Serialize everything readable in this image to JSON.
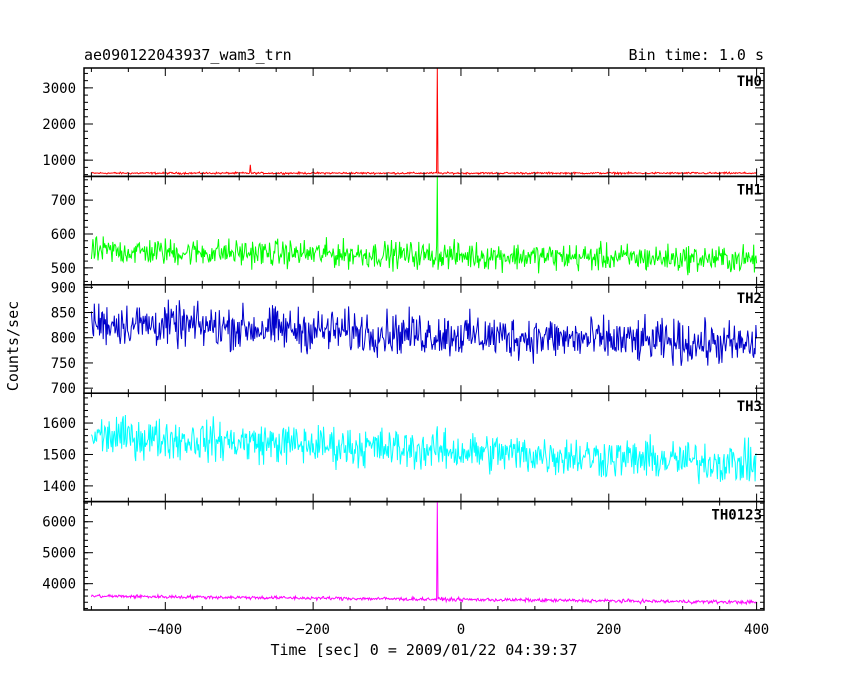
{
  "header": {
    "title": "ae090122043937_wam3_trn",
    "bin_time": "Bin time: 1.0 s"
  },
  "axes": {
    "ylabel": "Counts/sec",
    "xlabel": "Time [sec] 0 = 2009/01/22 04:39:37"
  },
  "chart_data": {
    "type": "line",
    "x_range": [
      -510,
      410
    ],
    "x_ticks": [
      -400,
      -200,
      0,
      200,
      400
    ],
    "grid": false,
    "panels": [
      {
        "name": "TH0",
        "color": "#ff0000",
        "ylim": [
          550,
          3550
        ],
        "y_ticks": [
          1000,
          2000,
          3000
        ],
        "baseline": 640,
        "noise": 18,
        "spikes": [
          {
            "x": -32,
            "y": 3550
          },
          {
            "x": -285,
            "y": 870
          }
        ]
      },
      {
        "name": "TH1",
        "color": "#00ff00",
        "ylim": [
          450,
          770
        ],
        "y_ticks": [
          500,
          600,
          700
        ],
        "baseline_start": 550,
        "baseline_end": 525,
        "noise": 28,
        "spikes": [
          {
            "x": -32,
            "y": 770
          }
        ]
      },
      {
        "name": "TH2",
        "color": "#0000cc",
        "ylim": [
          690,
          905
        ],
        "y_ticks": [
          700,
          750,
          800,
          850,
          900
        ],
        "baseline_start": 830,
        "baseline_end": 785,
        "noise": 30,
        "spikes": []
      },
      {
        "name": "TH3",
        "color": "#00ffff",
        "ylim": [
          1350,
          1695
        ],
        "y_ticks": [
          1400,
          1500,
          1600
        ],
        "baseline_start": 1560,
        "baseline_end": 1470,
        "noise": 45,
        "spikes": []
      },
      {
        "name": "TH0123",
        "color": "#ff00ff",
        "ylim": [
          3150,
          6650
        ],
        "y_ticks": [
          4000,
          5000,
          6000
        ],
        "baseline_start": 3600,
        "baseline_end": 3400,
        "noise": 40,
        "spikes": [
          {
            "x": -32,
            "y": 6650
          }
        ]
      }
    ]
  }
}
